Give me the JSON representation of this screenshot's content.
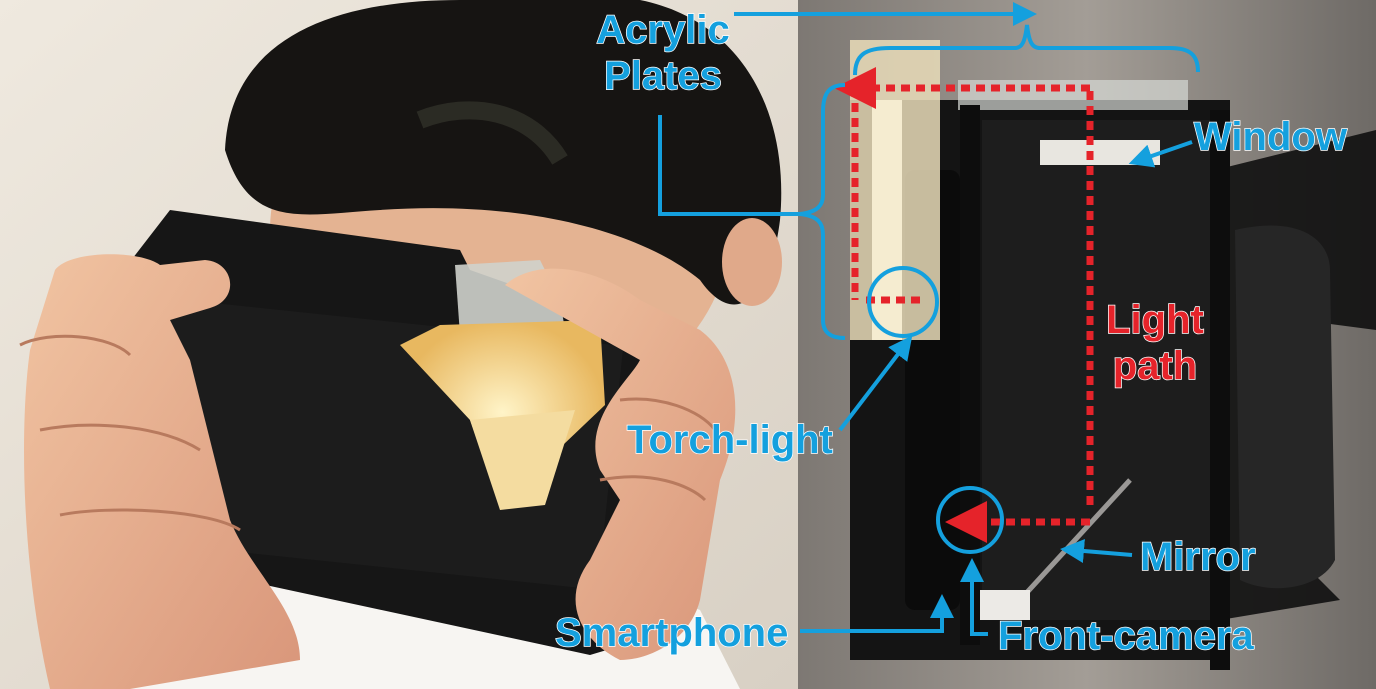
{
  "labels": {
    "acrylic_line1": "Acrylic",
    "acrylic_line2": "Plates",
    "window": "Window",
    "light_line1": "Light",
    "light_line2": "path",
    "torch_light": "Torch-light",
    "mirror": "Mirror",
    "smartphone": "Smartphone",
    "front_camera": "Front-camera"
  },
  "colors": {
    "annotation_blue": "#14a0de",
    "light_path_red": "#e5232a",
    "label_outline": "#ffffff"
  }
}
